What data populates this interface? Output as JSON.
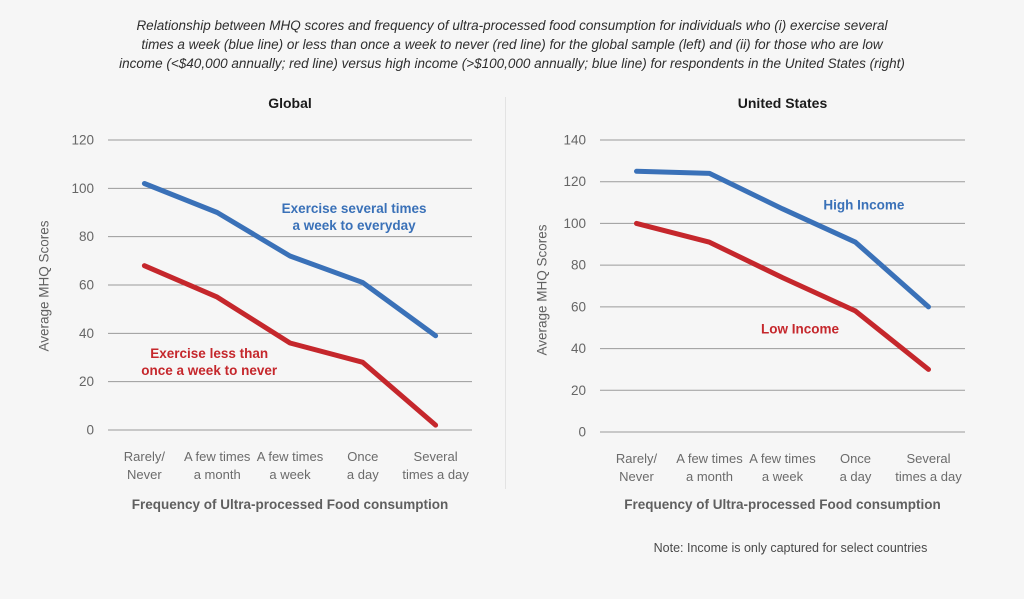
{
  "figure_title": {
    "lines": [
      "Relationship between MHQ scores and frequency of ultra-processed food consumption for individuals who (i) exercise several",
      "times a week (blue line) or less than once a week to never (red line) for the global sample (left) and (ii) for those who are low",
      "income (<$40,000 annually; red line) versus high income (>$100,000 annually; blue line) for respondents in the United States (right)"
    ]
  },
  "chart_data": [
    {
      "type": "line",
      "title": "Global",
      "ylabel": "Average MHQ Scores",
      "xlabel": "Frequency of Ultra-processed Food consumption",
      "ylim": [
        0,
        120
      ],
      "ytick_step": 20,
      "grid": true,
      "grid_color": "#9b9b9b",
      "legend_position": "inline-annotations",
      "categories": [
        "Rarely/Never",
        "A few times a month",
        "A few times a week",
        "Once a day",
        "Several times a day"
      ],
      "category_label_lines": [
        [
          "Rarely/",
          "Never"
        ],
        [
          "A few times",
          "a month"
        ],
        [
          "A few times",
          "a week"
        ],
        [
          "Once",
          "a day"
        ],
        [
          "Several",
          "times a day"
        ]
      ],
      "series": [
        {
          "name": "Exercise several times a week to everyday",
          "color": "#3a71b8",
          "values": [
            102,
            90,
            72,
            61,
            39
          ],
          "label_lines": [
            "Exercise several times",
            "a week to everyday"
          ],
          "label_pos": {
            "fx": 0.676,
            "fy": 0.265
          }
        },
        {
          "name": "Exercise less than once a week to never",
          "color": "#c5272c",
          "values": [
            68,
            55,
            36,
            28,
            2
          ],
          "label_lines": [
            "Exercise less than",
            "once a week to never"
          ],
          "label_pos": {
            "fx": 0.278,
            "fy": 0.765
          }
        }
      ]
    },
    {
      "type": "line",
      "title": "United States",
      "ylabel": "Average MHQ Scores",
      "xlabel": "Frequency of Ultra-processed Food consumption",
      "note": "Note: Income is only captured for select countries",
      "ylim": [
        0,
        140
      ],
      "ytick_step": 20,
      "grid": true,
      "grid_color": "#9b9b9b",
      "legend_position": "inline-annotations",
      "categories": [
        "Rarely/Never",
        "A few times a month",
        "A few times a week",
        "Once a day",
        "Several times a day"
      ],
      "category_label_lines": [
        [
          "Rarely/",
          "Never"
        ],
        [
          "A few times",
          "a month"
        ],
        [
          "A few times",
          "a week"
        ],
        [
          "Once",
          "a day"
        ],
        [
          "Several",
          "times a day"
        ]
      ],
      "series": [
        {
          "name": "High Income",
          "color": "#3a71b8",
          "values": [
            125,
            124,
            107,
            91,
            60
          ],
          "label_lines": [
            "High Income"
          ],
          "label_pos": {
            "fx": 0.723,
            "fy": 0.223
          }
        },
        {
          "name": "Low Income",
          "color": "#c5272c",
          "values": [
            100,
            91,
            74,
            58,
            30
          ],
          "label_lines": [
            "Low Income"
          ],
          "label_pos": {
            "fx": 0.548,
            "fy": 0.648
          }
        }
      ]
    }
  ]
}
